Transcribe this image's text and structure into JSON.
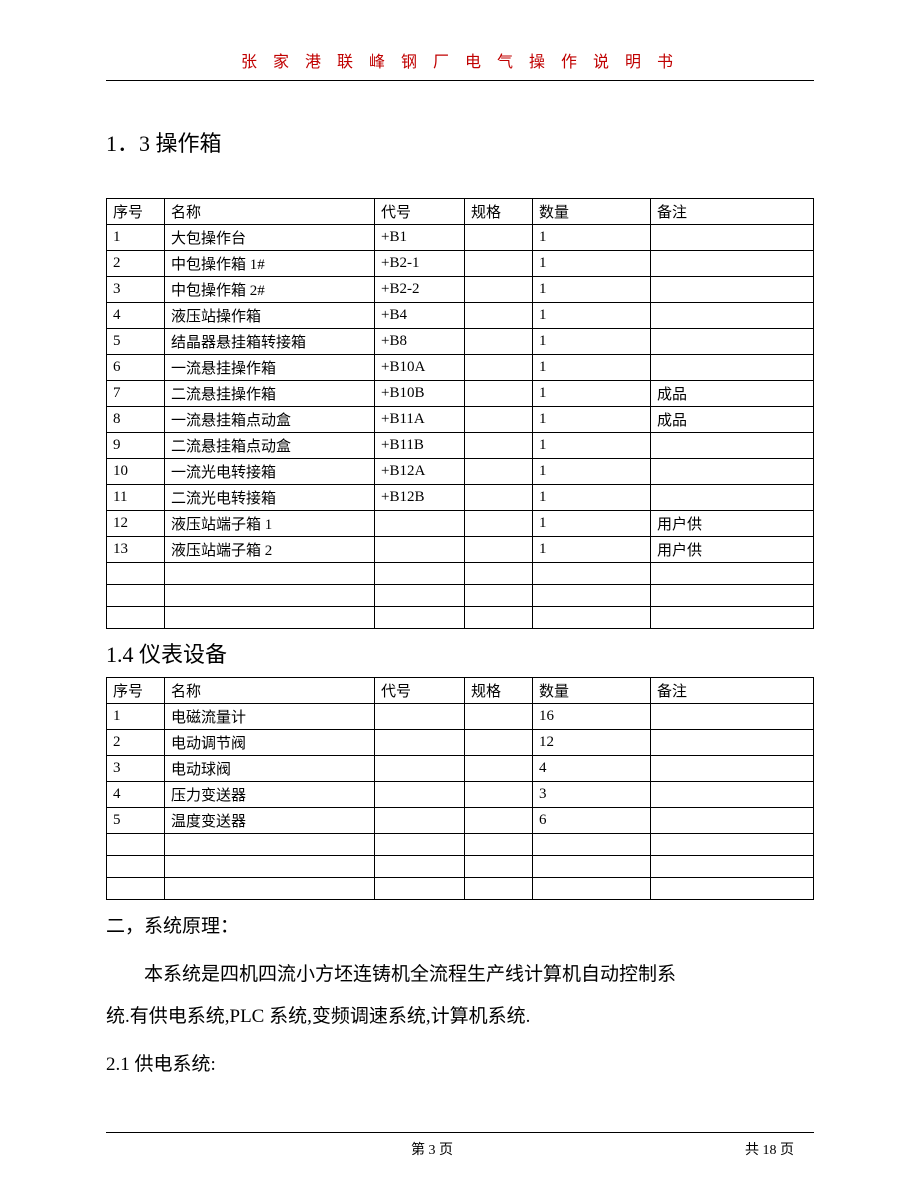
{
  "header_text": "张 家 港 联 峰 钢 厂 电 气 操 作 说 明 书",
  "section_1_3_title": "1．3 操作箱",
  "table1": {
    "headers": {
      "seq": "序号",
      "name": "名称",
      "code": "代号",
      "spec": "规格",
      "qty": "数量",
      "remark": "备注"
    },
    "rows": [
      {
        "seq": "1",
        "name": "大包操作台",
        "code": "+B1",
        "spec": "",
        "qty": "1",
        "remark": ""
      },
      {
        "seq": "2",
        "name": "中包操作箱 1#",
        "code": "+B2-1",
        "spec": "",
        "qty": "1",
        "remark": ""
      },
      {
        "seq": "3",
        "name": "中包操作箱 2#",
        "code": "+B2-2",
        "spec": "",
        "qty": "1",
        "remark": ""
      },
      {
        "seq": "4",
        "name": "液压站操作箱",
        "code": "+B4",
        "spec": "",
        "qty": "1",
        "remark": ""
      },
      {
        "seq": "5",
        "name": "结晶器悬挂箱转接箱",
        "code": "+B8",
        "spec": "",
        "qty": "1",
        "remark": ""
      },
      {
        "seq": "6",
        "name": "一流悬挂操作箱",
        "code": "+B10A",
        "spec": "",
        "qty": "1",
        "remark": ""
      },
      {
        "seq": "7",
        "name": "二流悬挂操作箱",
        "code": "+B10B",
        "spec": "",
        "qty": "1",
        "remark": "成品"
      },
      {
        "seq": "8",
        "name": "一流悬挂箱点动盒",
        "code": "+B11A",
        "spec": "",
        "qty": "1",
        "remark": "成品"
      },
      {
        "seq": "9",
        "name": "二流悬挂箱点动盒",
        "code": "+B11B",
        "spec": "",
        "qty": "1",
        "remark": ""
      },
      {
        "seq": "10",
        "name": "一流光电转接箱",
        "code": "+B12A",
        "spec": "",
        "qty": "1",
        "remark": ""
      },
      {
        "seq": "11",
        "name": "二流光电转接箱",
        "code": "+B12B",
        "spec": "",
        "qty": "1",
        "remark": ""
      },
      {
        "seq": "12",
        "name": "液压站端子箱 1",
        "code": "",
        "spec": "",
        "qty": "1",
        "remark": "用户供"
      },
      {
        "seq": "13",
        "name": "液压站端子箱 2",
        "code": "",
        "spec": "",
        "qty": "1",
        "remark": "用户供"
      },
      {
        "seq": "",
        "name": "",
        "code": "",
        "spec": "",
        "qty": "",
        "remark": ""
      },
      {
        "seq": "",
        "name": "",
        "code": "",
        "spec": "",
        "qty": "",
        "remark": ""
      },
      {
        "seq": "",
        "name": "",
        "code": "",
        "spec": "",
        "qty": "",
        "remark": ""
      }
    ]
  },
  "section_1_4_title": "1.4 仪表设备",
  "table2": {
    "headers": {
      "seq": "序号",
      "name": "名称",
      "code": "代号",
      "spec": "规格",
      "qty": "数量",
      "remark": "备注"
    },
    "rows": [
      {
        "seq": "1",
        "name": "电磁流量计",
        "code": "",
        "spec": "",
        "qty": "16",
        "remark": ""
      },
      {
        "seq": "2",
        "name": "电动调节阀",
        "code": "",
        "spec": "",
        "qty": "12",
        "remark": ""
      },
      {
        "seq": "3",
        "name": "电动球阀",
        "code": "",
        "spec": "",
        "qty": "4",
        "remark": ""
      },
      {
        "seq": "4",
        "name": "压力变送器",
        "code": "",
        "spec": "",
        "qty": "3",
        "remark": ""
      },
      {
        "seq": "5",
        "name": "温度变送器",
        "code": "",
        "spec": "",
        "qty": "6",
        "remark": ""
      },
      {
        "seq": "",
        "name": "",
        "code": "",
        "spec": "",
        "qty": "",
        "remark": ""
      },
      {
        "seq": "",
        "name": "",
        "code": "",
        "spec": "",
        "qty": "",
        "remark": ""
      },
      {
        "seq": "",
        "name": "",
        "code": "",
        "spec": "",
        "qty": "",
        "remark": ""
      }
    ]
  },
  "section_2_title": "二，系统原理：",
  "paragraph_1": "本系统是四机四流小方坯连铸机全流程生产线计算机自动控制系",
  "paragraph_2": "统.有供电系统,PLC 系统,变频调速系统,计算机系统.",
  "section_2_1_title": "2.1 供电系统:",
  "footer_page": "第 3 页",
  "footer_total": "共 18 页"
}
